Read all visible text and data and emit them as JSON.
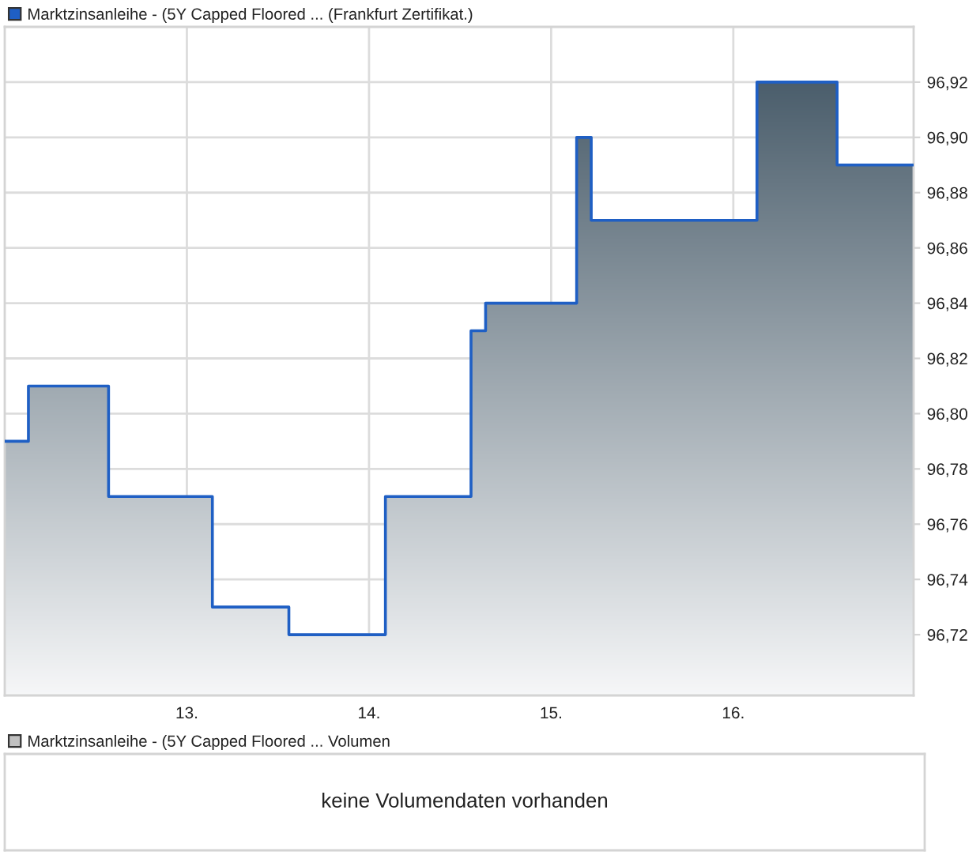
{
  "chart_data": [
    {
      "type": "step",
      "x": [
        12.0,
        12.13,
        12.57,
        13.14,
        13.56,
        14.09,
        14.56,
        14.64,
        15.14,
        15.22,
        16.13,
        16.57,
        16.99
      ],
      "series": [
        {
          "name": "Marktzinsanleihe - (5Y Capped Floored ... (Frankfurt Zertifikat.)",
          "color": "#1f5fc4",
          "values": [
            96.79,
            96.81,
            96.77,
            96.73,
            96.72,
            96.77,
            96.83,
            96.84,
            96.9,
            96.87,
            96.92,
            96.89,
            96.89
          ]
        }
      ],
      "xlim": [
        12.0,
        16.99
      ],
      "xticks": [
        {
          "value": 13,
          "label": "13."
        },
        {
          "value": 14,
          "label": "14."
        },
        {
          "value": 15,
          "label": "15."
        },
        {
          "value": 16,
          "label": "16."
        }
      ],
      "ylim": [
        96.698,
        96.94
      ],
      "yticks": [
        {
          "value": 96.72,
          "label": "96,72"
        },
        {
          "value": 96.74,
          "label": "96,74"
        },
        {
          "value": 96.76,
          "label": "96,76"
        },
        {
          "value": 96.78,
          "label": "96,78"
        },
        {
          "value": 96.8,
          "label": "96,80"
        },
        {
          "value": 96.82,
          "label": "96,82"
        },
        {
          "value": 96.84,
          "label": "96,84"
        },
        {
          "value": 96.86,
          "label": "96,86"
        },
        {
          "value": 96.88,
          "label": "96,88"
        },
        {
          "value": 96.9,
          "label": "96,90"
        },
        {
          "value": 96.92,
          "label": "96,92"
        }
      ],
      "grid": true,
      "legend": "top left"
    },
    {
      "type": "other",
      "series": [
        {
          "name": "Marktzinsanleihe - (5Y Capped Floored ... Volumen",
          "color": "#c0c0c0"
        }
      ],
      "legend": "top left",
      "annotations": [
        "keine Volumendaten vorhanden"
      ]
    }
  ]
}
